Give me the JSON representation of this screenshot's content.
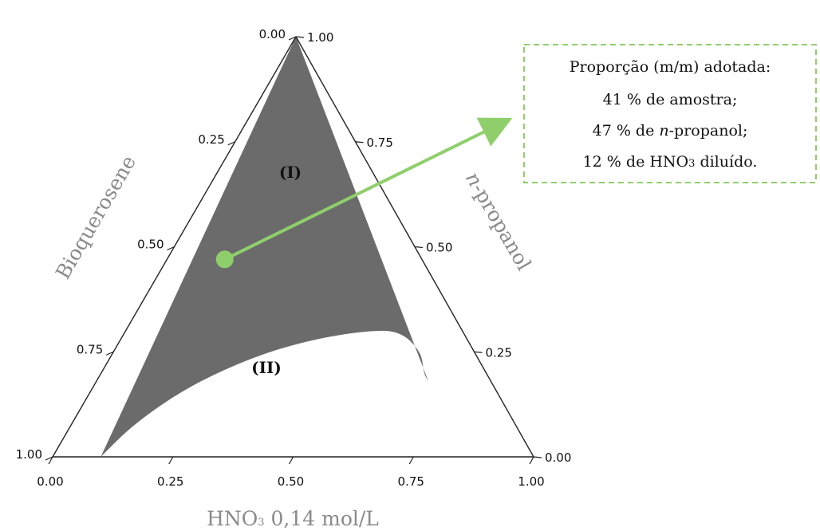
{
  "chart_data": {
    "type": "ternary",
    "axes": {
      "left": {
        "label": "Bioquerosene",
        "ticks": [
          "0.00",
          "0.25",
          "0.50",
          "0.75",
          "1.00"
        ]
      },
      "right": {
        "label": "n-propanol",
        "label_italic_part": "n",
        "label_rest": "-propanol",
        "ticks": [
          "0.00",
          "0.25",
          "0.50",
          "0.75",
          "1.00"
        ]
      },
      "bottom": {
        "label_main": "HNO",
        "label_sub": "3",
        "label_rest": " 0,14 mol/L",
        "ticks": [
          "0.00",
          "0.25",
          "0.50",
          "0.75",
          "1.00"
        ]
      }
    },
    "regions": [
      {
        "label": "(I)",
        "fill": "#6b6b6b",
        "boundary_binodal": [
          {
            "hno3": 0.1,
            "npropanol": 0.0
          },
          {
            "hno3": 0.13,
            "npropanol": 0.08
          },
          {
            "hno3": 0.2,
            "npropanol": 0.17
          },
          {
            "hno3": 0.3,
            "npropanol": 0.24
          },
          {
            "hno3": 0.4,
            "npropanol": 0.28
          },
          {
            "hno3": 0.5,
            "npropanol": 0.3
          },
          {
            "hno3": 0.57,
            "npropanol": 0.3
          },
          {
            "hno3": 0.64,
            "npropanol": 0.25
          },
          {
            "hno3": 0.67,
            "npropanol": 0.2
          },
          {
            "hno3": 0.69,
            "npropanol": 0.18
          }
        ]
      },
      {
        "label": "(II)",
        "fill": "#ffffff"
      }
    ],
    "selected_point": {
      "sample": 0.41,
      "npropanol": 0.47,
      "hno3": 0.12,
      "color": "#8fcf6b"
    },
    "annotation": {
      "lines": [
        {
          "text": "Proporção (m/m) adotada:"
        },
        {
          "text": "41 % de amostra;"
        },
        {
          "pre": "47 % de ",
          "italic": "n",
          "post": "-propanol;"
        },
        {
          "pre": "12 % de HNO",
          "sub": "3",
          "post": " diluído."
        }
      ],
      "border_color": "#8fcf6b"
    }
  }
}
